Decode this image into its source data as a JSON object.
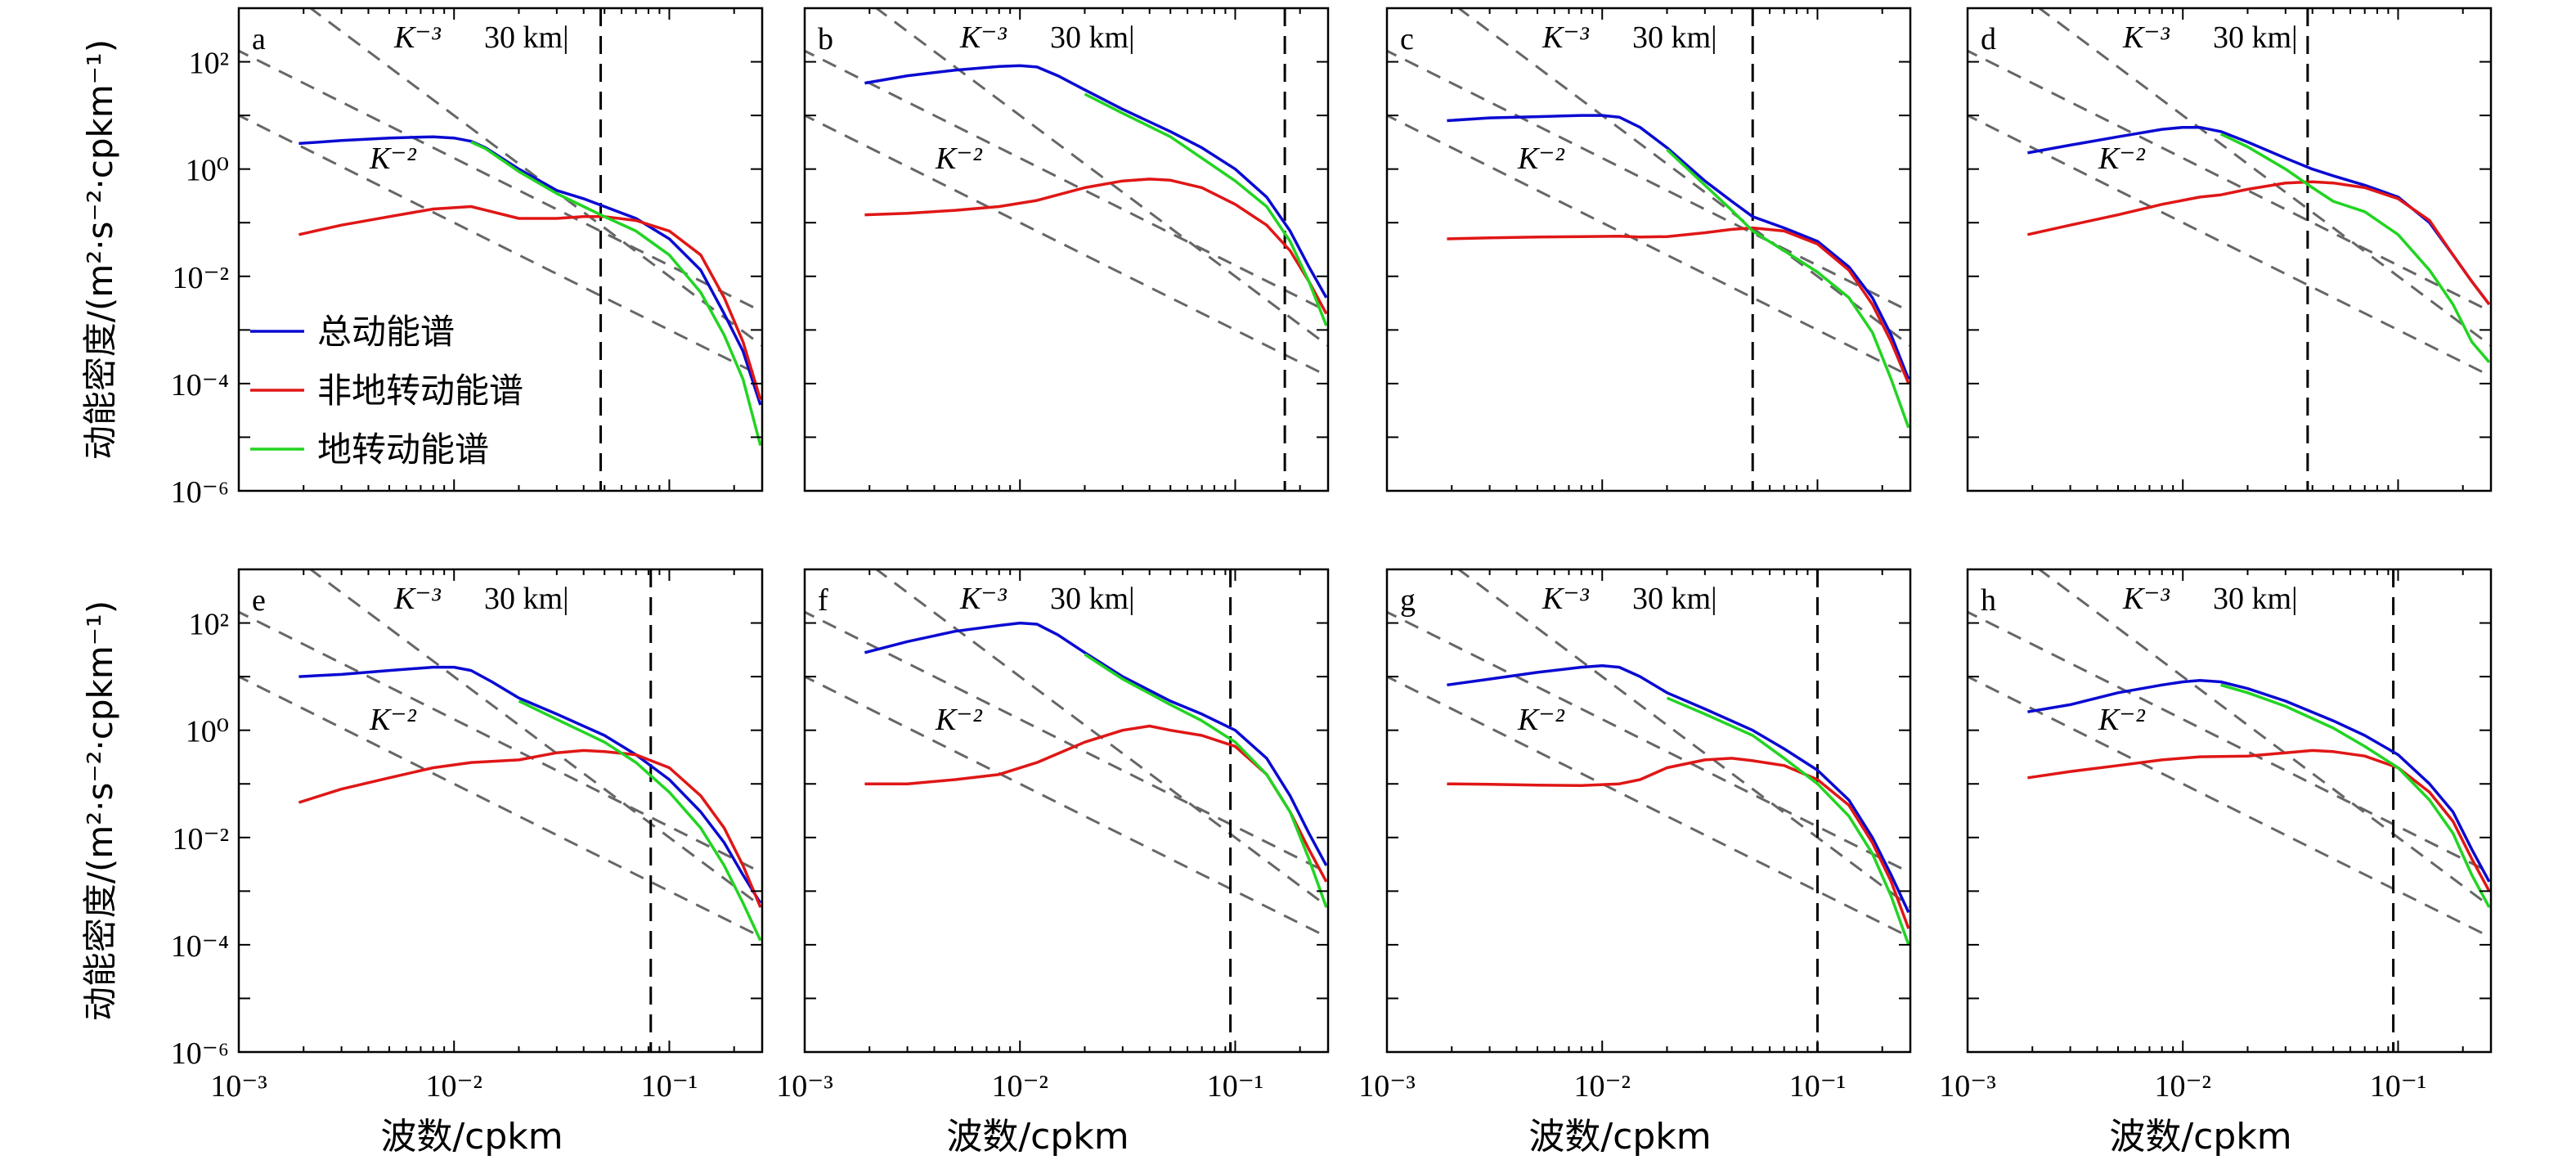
{
  "figure": {
    "ylabel": "动能密度/(m²·s⁻²·cpkm⁻¹)",
    "xlabel": "波数/cpkm",
    "ref_k3": "K⁻³",
    "ref_k2": "K⁻²",
    "scale_label": "30 km|",
    "x_ticks": [
      "10⁻³",
      "10⁻²",
      "10⁻¹"
    ],
    "y_ticks": [
      "10⁻⁶",
      "10⁻⁴",
      "10⁻²",
      "10⁰",
      "10²"
    ],
    "legend": [
      "总动能谱",
      "非地转动能谱",
      "地转动能谱"
    ],
    "colors": {
      "total": "#0a0ad2",
      "ageo": "#e01616",
      "geo": "#22d422",
      "ref": "#666666",
      "axis": "#000000"
    }
  },
  "chart_data": [
    {
      "type": "line",
      "panel": "a",
      "xscale": "log",
      "yscale": "log",
      "xlim": [
        0.001,
        0.27
      ],
      "ylim": [
        1e-06,
        1000
      ],
      "cutoff_x": 0.048,
      "series": [
        {
          "name": "总动能谱",
          "x": [
            0.0019,
            0.003,
            0.005,
            0.008,
            0.01,
            0.012,
            0.014,
            0.02,
            0.03,
            0.04,
            0.05,
            0.07,
            0.1,
            0.14,
            0.18,
            0.22,
            0.265
          ],
          "y": [
            3,
            3.4,
            3.8,
            4,
            3.8,
            3.3,
            2.5,
            1.0,
            0.4,
            0.28,
            0.2,
            0.12,
            0.05,
            0.013,
            0.002,
            0.0004,
            4e-05
          ]
        },
        {
          "name": "非地转动能谱",
          "x": [
            0.0019,
            0.003,
            0.005,
            0.008,
            0.012,
            0.015,
            0.02,
            0.03,
            0.04,
            0.05,
            0.07,
            0.1,
            0.14,
            0.18,
            0.22,
            0.265
          ],
          "y": [
            0.06,
            0.09,
            0.13,
            0.18,
            0.2,
            0.16,
            0.12,
            0.12,
            0.13,
            0.13,
            0.11,
            0.07,
            0.025,
            0.004,
            0.0006,
            5e-05
          ]
        },
        {
          "name": "地转动能谱",
          "x": [
            0.012,
            0.014,
            0.02,
            0.03,
            0.04,
            0.05,
            0.07,
            0.1,
            0.14,
            0.18,
            0.22,
            0.265
          ],
          "y": [
            3.2,
            2.4,
            0.9,
            0.35,
            0.2,
            0.13,
            0.07,
            0.025,
            0.005,
            0.0008,
            0.00012,
            7e-06
          ]
        }
      ]
    },
    {
      "type": "line",
      "panel": "b",
      "xscale": "log",
      "yscale": "log",
      "xlim": [
        0.001,
        0.27
      ],
      "ylim": [
        1e-06,
        1000
      ],
      "cutoff_x": 0.17,
      "series": [
        {
          "name": "总动能谱",
          "x": [
            0.0019,
            0.003,
            0.005,
            0.008,
            0.01,
            0.012,
            0.015,
            0.02,
            0.03,
            0.05,
            0.07,
            0.1,
            0.14,
            0.18,
            0.22,
            0.265
          ],
          "y": [
            40,
            55,
            70,
            82,
            85,
            80,
            55,
            30,
            13,
            5,
            2.5,
            1.0,
            0.3,
            0.07,
            0.015,
            0.004
          ]
        },
        {
          "name": "非地转动能谱",
          "x": [
            0.0019,
            0.003,
            0.005,
            0.008,
            0.012,
            0.02,
            0.03,
            0.04,
            0.05,
            0.07,
            0.1,
            0.14,
            0.18,
            0.22,
            0.265
          ],
          "y": [
            0.14,
            0.15,
            0.17,
            0.2,
            0.26,
            0.45,
            0.6,
            0.65,
            0.62,
            0.45,
            0.22,
            0.09,
            0.03,
            0.008,
            0.002
          ]
        },
        {
          "name": "地转动能谱",
          "x": [
            0.02,
            0.03,
            0.05,
            0.07,
            0.1,
            0.14,
            0.18,
            0.22,
            0.265
          ],
          "y": [
            25,
            11,
            4,
            1.6,
            0.6,
            0.2,
            0.045,
            0.008,
            0.0012
          ]
        }
      ]
    },
    {
      "type": "line",
      "panel": "c",
      "xscale": "log",
      "yscale": "log",
      "xlim": [
        0.001,
        0.27
      ],
      "ylim": [
        1e-06,
        1000
      ],
      "cutoff_x": 0.05,
      "series": [
        {
          "name": "总动能谱",
          "x": [
            0.0019,
            0.003,
            0.005,
            0.008,
            0.01,
            0.012,
            0.015,
            0.02,
            0.03,
            0.04,
            0.05,
            0.07,
            0.1,
            0.14,
            0.18,
            0.22,
            0.265
          ],
          "y": [
            8,
            9,
            9.5,
            10,
            10,
            9.3,
            6,
            2.5,
            0.6,
            0.25,
            0.13,
            0.08,
            0.045,
            0.015,
            0.004,
            0.0008,
            0.00012
          ]
        },
        {
          "name": "非地转动能谱",
          "x": [
            0.0019,
            0.003,
            0.005,
            0.008,
            0.012,
            0.015,
            0.02,
            0.03,
            0.04,
            0.05,
            0.07,
            0.1,
            0.14,
            0.18,
            0.22,
            0.265
          ],
          "y": [
            0.05,
            0.052,
            0.054,
            0.055,
            0.056,
            0.054,
            0.055,
            0.065,
            0.075,
            0.08,
            0.07,
            0.04,
            0.013,
            0.003,
            0.0006,
            0.0001
          ]
        },
        {
          "name": "地转动能谱",
          "x": [
            0.02,
            0.03,
            0.04,
            0.05,
            0.07,
            0.1,
            0.14,
            0.18,
            0.22,
            0.265
          ],
          "y": [
            2.3,
            0.5,
            0.17,
            0.07,
            0.03,
            0.012,
            0.004,
            0.0009,
            0.00012,
            1.5e-05
          ]
        }
      ]
    },
    {
      "type": "line",
      "panel": "d",
      "xscale": "log",
      "yscale": "log",
      "xlim": [
        0.001,
        0.27
      ],
      "ylim": [
        1e-06,
        1000
      ],
      "cutoff_x": 0.038,
      "series": [
        {
          "name": "总动能谱",
          "x": [
            0.0019,
            0.003,
            0.005,
            0.008,
            0.01,
            0.012,
            0.015,
            0.02,
            0.03,
            0.04,
            0.05,
            0.07,
            0.1,
            0.14,
            0.18,
            0.22,
            0.265
          ],
          "y": [
            2,
            2.8,
            4,
            5.5,
            6,
            6,
            5,
            3.2,
            1.6,
            1.0,
            0.75,
            0.5,
            0.3,
            0.1,
            0.025,
            0.008,
            0.003
          ]
        },
        {
          "name": "非地转动能谱",
          "x": [
            0.0019,
            0.003,
            0.005,
            0.008,
            0.012,
            0.015,
            0.02,
            0.03,
            0.04,
            0.05,
            0.07,
            0.1,
            0.14,
            0.18,
            0.22,
            0.265
          ],
          "y": [
            0.06,
            0.09,
            0.14,
            0.22,
            0.3,
            0.33,
            0.42,
            0.55,
            0.58,
            0.55,
            0.45,
            0.28,
            0.11,
            0.025,
            0.008,
            0.003
          ]
        },
        {
          "name": "地转动能谱",
          "x": [
            0.015,
            0.02,
            0.03,
            0.04,
            0.05,
            0.07,
            0.1,
            0.14,
            0.18,
            0.22,
            0.265
          ],
          "y": [
            4.5,
            2.6,
            1.0,
            0.45,
            0.25,
            0.16,
            0.06,
            0.013,
            0.003,
            0.0006,
            0.00025
          ]
        }
      ]
    },
    {
      "type": "line",
      "panel": "e",
      "xscale": "log",
      "yscale": "log",
      "xlim": [
        0.001,
        0.27
      ],
      "ylim": [
        1e-06,
        1000
      ],
      "cutoff_x": 0.082,
      "series": [
        {
          "name": "总动能谱",
          "x": [
            0.0019,
            0.003,
            0.005,
            0.008,
            0.01,
            0.012,
            0.015,
            0.02,
            0.03,
            0.05,
            0.07,
            0.1,
            0.14,
            0.18,
            0.22,
            0.265
          ],
          "y": [
            10,
            11,
            13,
            15,
            15,
            13,
            8,
            4,
            2,
            0.8,
            0.35,
            0.12,
            0.03,
            0.008,
            0.002,
            0.0006
          ]
        },
        {
          "name": "非地转动能谱",
          "x": [
            0.0019,
            0.003,
            0.005,
            0.008,
            0.012,
            0.02,
            0.03,
            0.04,
            0.05,
            0.07,
            0.1,
            0.14,
            0.18,
            0.22,
            0.265
          ],
          "y": [
            0.045,
            0.08,
            0.13,
            0.2,
            0.25,
            0.28,
            0.38,
            0.42,
            0.4,
            0.35,
            0.2,
            0.06,
            0.015,
            0.003,
            0.0005
          ]
        },
        {
          "name": "地转动能谱",
          "x": [
            0.02,
            0.03,
            0.05,
            0.07,
            0.1,
            0.14,
            0.18,
            0.22,
            0.265
          ],
          "y": [
            3.5,
            1.6,
            0.6,
            0.25,
            0.07,
            0.015,
            0.003,
            0.0006,
            0.00012
          ]
        }
      ]
    },
    {
      "type": "line",
      "panel": "f",
      "xscale": "log",
      "yscale": "log",
      "xlim": [
        0.001,
        0.27
      ],
      "ylim": [
        1e-06,
        1000
      ],
      "cutoff_x": 0.095,
      "series": [
        {
          "name": "总动能谱",
          "x": [
            0.0019,
            0.003,
            0.005,
            0.008,
            0.01,
            0.012,
            0.015,
            0.02,
            0.03,
            0.05,
            0.07,
            0.1,
            0.14,
            0.18,
            0.22,
            0.265
          ],
          "y": [
            28,
            45,
            70,
            90,
            100,
            95,
            60,
            28,
            10,
            3.5,
            2.0,
            1.0,
            0.3,
            0.06,
            0.012,
            0.003
          ]
        },
        {
          "name": "非地转动能谱",
          "x": [
            0.0019,
            0.003,
            0.005,
            0.008,
            0.012,
            0.02,
            0.03,
            0.04,
            0.05,
            0.07,
            0.1,
            0.14,
            0.18,
            0.22,
            0.265
          ],
          "y": [
            0.1,
            0.1,
            0.12,
            0.15,
            0.25,
            0.6,
            1.0,
            1.2,
            1.0,
            0.8,
            0.5,
            0.15,
            0.03,
            0.006,
            0.0015
          ]
        },
        {
          "name": "地转动能谱",
          "x": [
            0.02,
            0.03,
            0.05,
            0.07,
            0.1,
            0.14,
            0.18,
            0.22,
            0.265
          ],
          "y": [
            26,
            9,
            3,
            1.5,
            0.6,
            0.15,
            0.03,
            0.004,
            0.0005
          ]
        }
      ]
    },
    {
      "type": "line",
      "panel": "g",
      "xscale": "log",
      "yscale": "log",
      "xlim": [
        0.001,
        0.27
      ],
      "ylim": [
        1e-06,
        1000
      ],
      "cutoff_x": 0.1,
      "series": [
        {
          "name": "总动能谱",
          "x": [
            0.0019,
            0.003,
            0.005,
            0.008,
            0.01,
            0.012,
            0.015,
            0.02,
            0.03,
            0.05,
            0.07,
            0.1,
            0.14,
            0.18,
            0.22,
            0.265
          ],
          "y": [
            7,
            9,
            12,
            15,
            16,
            15,
            10,
            5,
            2.5,
            1.0,
            0.45,
            0.18,
            0.05,
            0.01,
            0.002,
            0.0004
          ]
        },
        {
          "name": "非地转动能谱",
          "x": [
            0.0019,
            0.003,
            0.005,
            0.008,
            0.012,
            0.015,
            0.02,
            0.03,
            0.04,
            0.05,
            0.07,
            0.1,
            0.14,
            0.18,
            0.22,
            0.265
          ],
          "y": [
            0.1,
            0.098,
            0.095,
            0.093,
            0.1,
            0.12,
            0.2,
            0.28,
            0.3,
            0.27,
            0.22,
            0.12,
            0.04,
            0.008,
            0.0015,
            0.0002
          ]
        },
        {
          "name": "地转动能谱",
          "x": [
            0.02,
            0.03,
            0.05,
            0.07,
            0.1,
            0.14,
            0.18,
            0.22,
            0.265
          ],
          "y": [
            4,
            2.0,
            0.8,
            0.3,
            0.1,
            0.025,
            0.005,
            0.0008,
            0.0001
          ]
        }
      ]
    },
    {
      "type": "line",
      "panel": "h",
      "xscale": "log",
      "yscale": "log",
      "xlim": [
        0.001,
        0.27
      ],
      "ylim": [
        1e-06,
        1000
      ],
      "cutoff_x": 0.095,
      "series": [
        {
          "name": "总动能谱",
          "x": [
            0.0019,
            0.003,
            0.005,
            0.008,
            0.01,
            0.012,
            0.015,
            0.02,
            0.03,
            0.05,
            0.07,
            0.1,
            0.14,
            0.18,
            0.22,
            0.265
          ],
          "y": [
            2.2,
            3,
            5,
            7,
            8,
            8.5,
            8,
            6,
            3.5,
            1.5,
            0.8,
            0.35,
            0.1,
            0.03,
            0.006,
            0.0015
          ]
        },
        {
          "name": "非地转动能谱",
          "x": [
            0.0019,
            0.003,
            0.005,
            0.008,
            0.012,
            0.02,
            0.03,
            0.04,
            0.05,
            0.07,
            0.1,
            0.14,
            0.18,
            0.22,
            0.265
          ],
          "y": [
            0.13,
            0.17,
            0.22,
            0.28,
            0.32,
            0.33,
            0.38,
            0.42,
            0.4,
            0.33,
            0.2,
            0.07,
            0.02,
            0.004,
            0.001
          ]
        },
        {
          "name": "地转动能谱",
          "x": [
            0.015,
            0.02,
            0.03,
            0.05,
            0.07,
            0.1,
            0.14,
            0.18,
            0.22,
            0.265
          ],
          "y": [
            7,
            5,
            2.8,
            1.1,
            0.5,
            0.2,
            0.05,
            0.012,
            0.002,
            0.0005
          ]
        }
      ]
    }
  ]
}
